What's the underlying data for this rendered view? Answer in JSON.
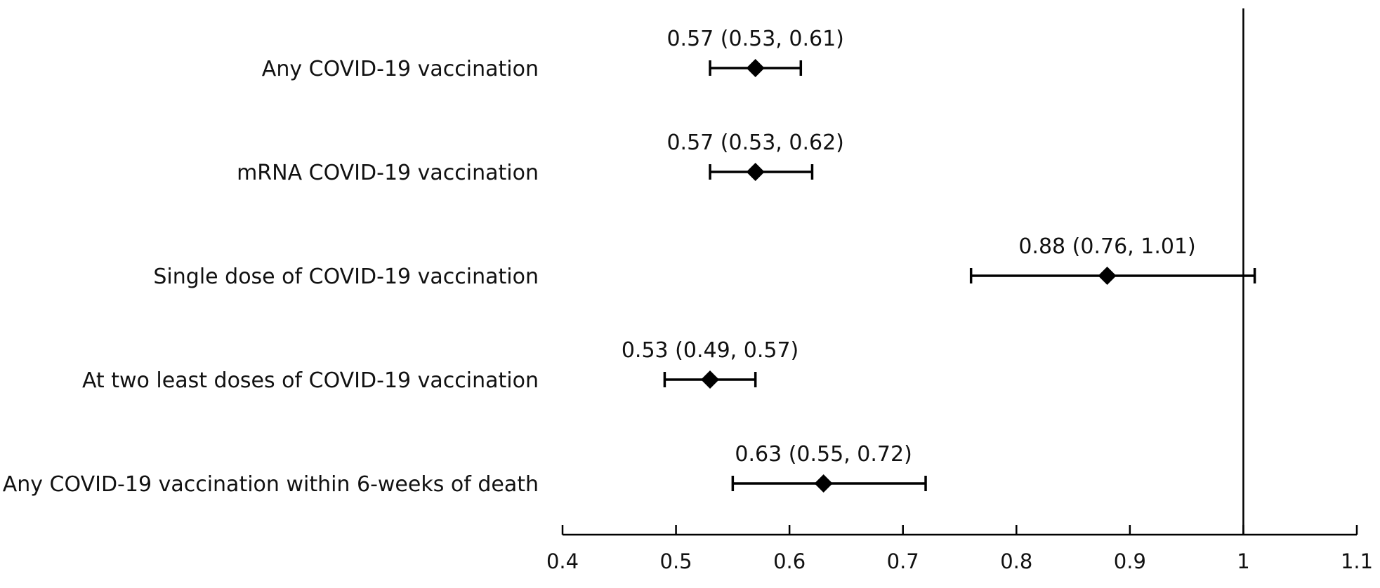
{
  "chart_data": {
    "type": "forest",
    "title": "",
    "xlabel": "",
    "ylabel": "",
    "xlim": [
      0.4,
      1.1
    ],
    "xticks": [
      0.4,
      0.5,
      0.6,
      0.7,
      0.8,
      0.9,
      1,
      1.1
    ],
    "xtick_labels": [
      "0.4",
      "0.5",
      "0.6",
      "0.7",
      "0.8",
      "0.9",
      "1",
      "1.1"
    ],
    "reference_line": 1,
    "rows": [
      {
        "label": "Any COVID-19 vaccination",
        "estimate": 0.57,
        "lower": 0.53,
        "upper": 0.61,
        "annotation": "0.57 (0.53, 0.61)"
      },
      {
        "label": "mRNA COVID-19 vaccination",
        "estimate": 0.57,
        "lower": 0.53,
        "upper": 0.62,
        "annotation": "0.57 (0.53, 0.62)"
      },
      {
        "label": "Single dose of COVID-19 vaccination",
        "estimate": 0.88,
        "lower": 0.76,
        "upper": 1.01,
        "annotation": "0.88 (0.76, 1.01)"
      },
      {
        "label": "At two least doses of COVID-19 vaccination",
        "estimate": 0.53,
        "lower": 0.49,
        "upper": 0.57,
        "annotation": "0.53 (0.49, 0.57)"
      },
      {
        "label": "Any COVID-19 vaccination within 6-weeks of death",
        "estimate": 0.63,
        "lower": 0.55,
        "upper": 0.72,
        "annotation": "0.63 (0.55, 0.72)"
      }
    ]
  }
}
